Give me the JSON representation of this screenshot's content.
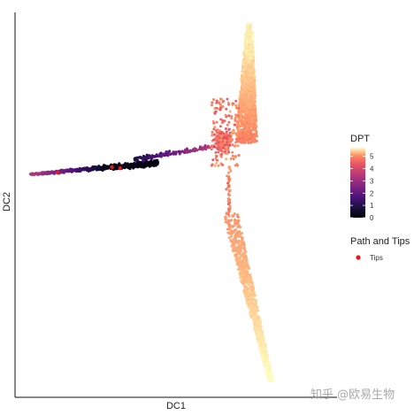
{
  "chart_data": {
    "type": "scatter",
    "title": "",
    "xlabel": "DC1",
    "ylabel": "DC2",
    "xlim": [
      0,
      1
    ],
    "ylim": [
      0,
      1
    ],
    "axis_ticks": "none",
    "grid": false,
    "color_variable": "DPT",
    "color_scale": "magma",
    "color_range": [
      0,
      5.7
    ],
    "colorbar": {
      "title": "DPT",
      "ticks": [
        "0",
        "1",
        "2",
        "3",
        "4",
        "5"
      ],
      "position": "right"
    },
    "legend": {
      "title": "Path and Tips",
      "entries": [
        {
          "label": "Tips",
          "color": "#e41a1c"
        }
      ],
      "position": "right"
    },
    "branches": [
      {
        "name": "left-branch",
        "dpt_range": [
          0.0,
          3.0
        ],
        "x_range": [
          0.04,
          0.37
        ],
        "y_range": [
          0.57,
          0.62
        ]
      },
      {
        "name": "upper-branch",
        "dpt_range": [
          3.5,
          5.7
        ],
        "x_range": [
          0.6,
          0.74
        ],
        "y_range": [
          0.64,
          0.97
        ]
      },
      {
        "name": "lower-branch",
        "dpt_range": [
          4.2,
          5.7
        ],
        "x_range": [
          0.63,
          0.8
        ],
        "y_range": [
          0.04,
          0.49
        ]
      }
    ],
    "tips": [
      {
        "x": 0.3,
        "y": 0.597
      },
      {
        "x": 0.325,
        "y": 0.594
      },
      {
        "x": 0.13,
        "y": 0.583
      }
    ]
  },
  "watermark": "知乎 @欧易生物"
}
